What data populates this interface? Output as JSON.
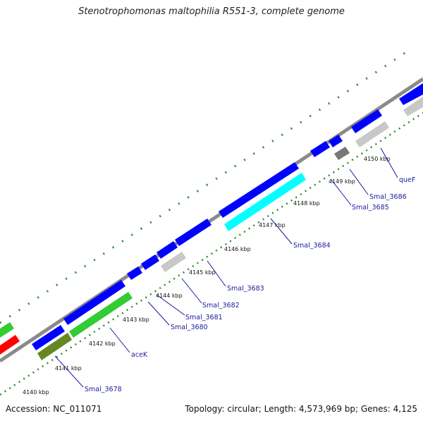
{
  "title": "Stenotrophomonas maltophilia R551-3, complete genome",
  "footer": {
    "accession": "Accession: NC_011071",
    "topology": "Topology: circular; Length: 4,573,969 bp; Genes: 4,125"
  },
  "colors": {
    "backbone": "#8a8a8a",
    "tick": "#2e8b2e",
    "forward_gene": "#0000ff",
    "reverse_gene_green": "#33cc33",
    "reverse_gene_olive": "#668822",
    "reverse_gene_cyan": "#00ffff",
    "reverse_gene_gray": "#c8c8c8",
    "reverse_gene_darkgray": "#777777",
    "other_gene_red": "#ff0000",
    "label_text": "#1a1aa0"
  },
  "ticks": [
    {
      "kbp": 4140,
      "label": "4140 kbp"
    },
    {
      "kbp": 4141,
      "label": "4141 kbp"
    },
    {
      "kbp": 4142,
      "label": "4142 kbp"
    },
    {
      "kbp": 4143,
      "label": "4143 kbp"
    },
    {
      "kbp": 4144,
      "label": "4144 kbp"
    },
    {
      "kbp": 4145,
      "label": "4145 kbp"
    },
    {
      "kbp": 4146,
      "label": "4146 kbp"
    },
    {
      "kbp": 4147,
      "label": "4147 kbp"
    },
    {
      "kbp": 4148,
      "label": "4148 kbp"
    },
    {
      "kbp": 4149,
      "label": "4149 kbp"
    },
    {
      "kbp": 4150,
      "label": "4150 kbp"
    }
  ],
  "gene_labels": [
    "Smal_3678",
    "aceK",
    "Smal_3680",
    "Smal_3681",
    "Smal_3682",
    "Smal_3683",
    "Smal_3684",
    "Smal_3685",
    "Smal_3686",
    "queF"
  ]
}
